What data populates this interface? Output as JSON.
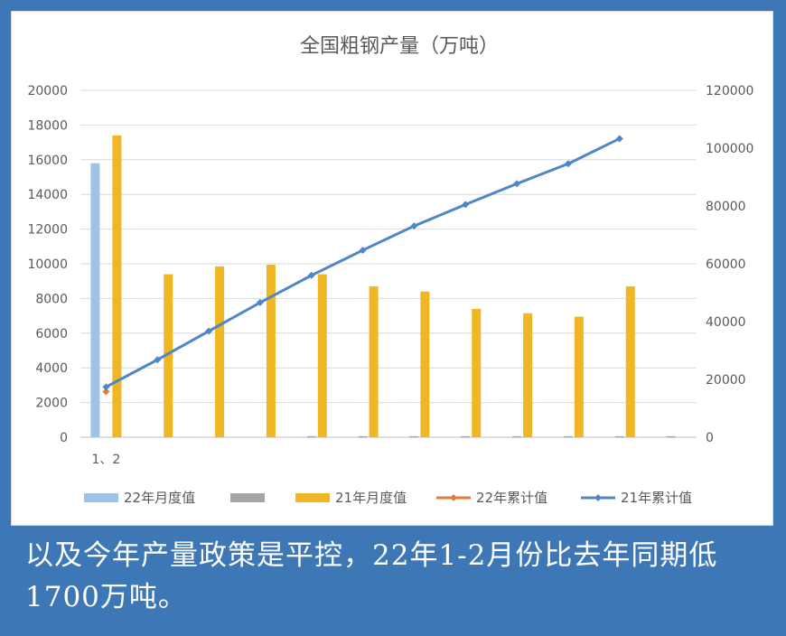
{
  "caption": "以及今年产量政策是平控，22年1-2月份比去年同期低1700万吨。",
  "chart_data": {
    "type": "bar",
    "title": "全国粗钢产量（万吨）",
    "categories": [
      "1、2",
      "",
      "",
      "",
      "",
      "",
      "",
      "",
      "",
      "",
      "",
      ""
    ],
    "left_axis": {
      "range": [
        0,
        20000
      ],
      "ticks": [
        "0",
        "2000",
        "4000",
        "6000",
        "8000",
        "10000",
        "12000",
        "14000",
        "16000",
        "18000",
        "20000"
      ]
    },
    "right_axis": {
      "range": [
        0,
        120000
      ],
      "ticks": [
        "0",
        "20000",
        "40000",
        "60000",
        "80000",
        "100000",
        "120000"
      ]
    },
    "grid": true,
    "legend_position": "bottom",
    "series": [
      {
        "name": "22年月度值",
        "type": "bar",
        "axis": "left",
        "color": "#9dc3e6",
        "values": [
          15800,
          null,
          null,
          null,
          null,
          null,
          null,
          null,
          null,
          null,
          null,
          null
        ]
      },
      {
        "name": "",
        "type": "bar",
        "axis": "left",
        "color": "#a5a5a5",
        "values": [
          0,
          0,
          0,
          0,
          60,
          60,
          60,
          60,
          60,
          60,
          60,
          60
        ]
      },
      {
        "name": "21年月度值",
        "type": "bar",
        "axis": "left",
        "color": "#f0b624",
        "values": [
          17400,
          9400,
          9850,
          9950,
          9400,
          8700,
          8400,
          7400,
          7150,
          6950,
          8700,
          null
        ]
      },
      {
        "name": "22年累计值",
        "type": "line",
        "axis": "right",
        "color": "#e07b39",
        "values": [
          15800,
          null,
          null,
          null,
          null,
          null,
          null,
          null,
          null,
          null,
          null,
          null
        ]
      },
      {
        "name": "21年累计值",
        "type": "line",
        "axis": "right",
        "color": "#4f86c6",
        "values": [
          17400,
          26800,
          36700,
          46600,
          56000,
          64700,
          73100,
          80500,
          87700,
          94600,
          103300,
          null
        ]
      }
    ]
  }
}
